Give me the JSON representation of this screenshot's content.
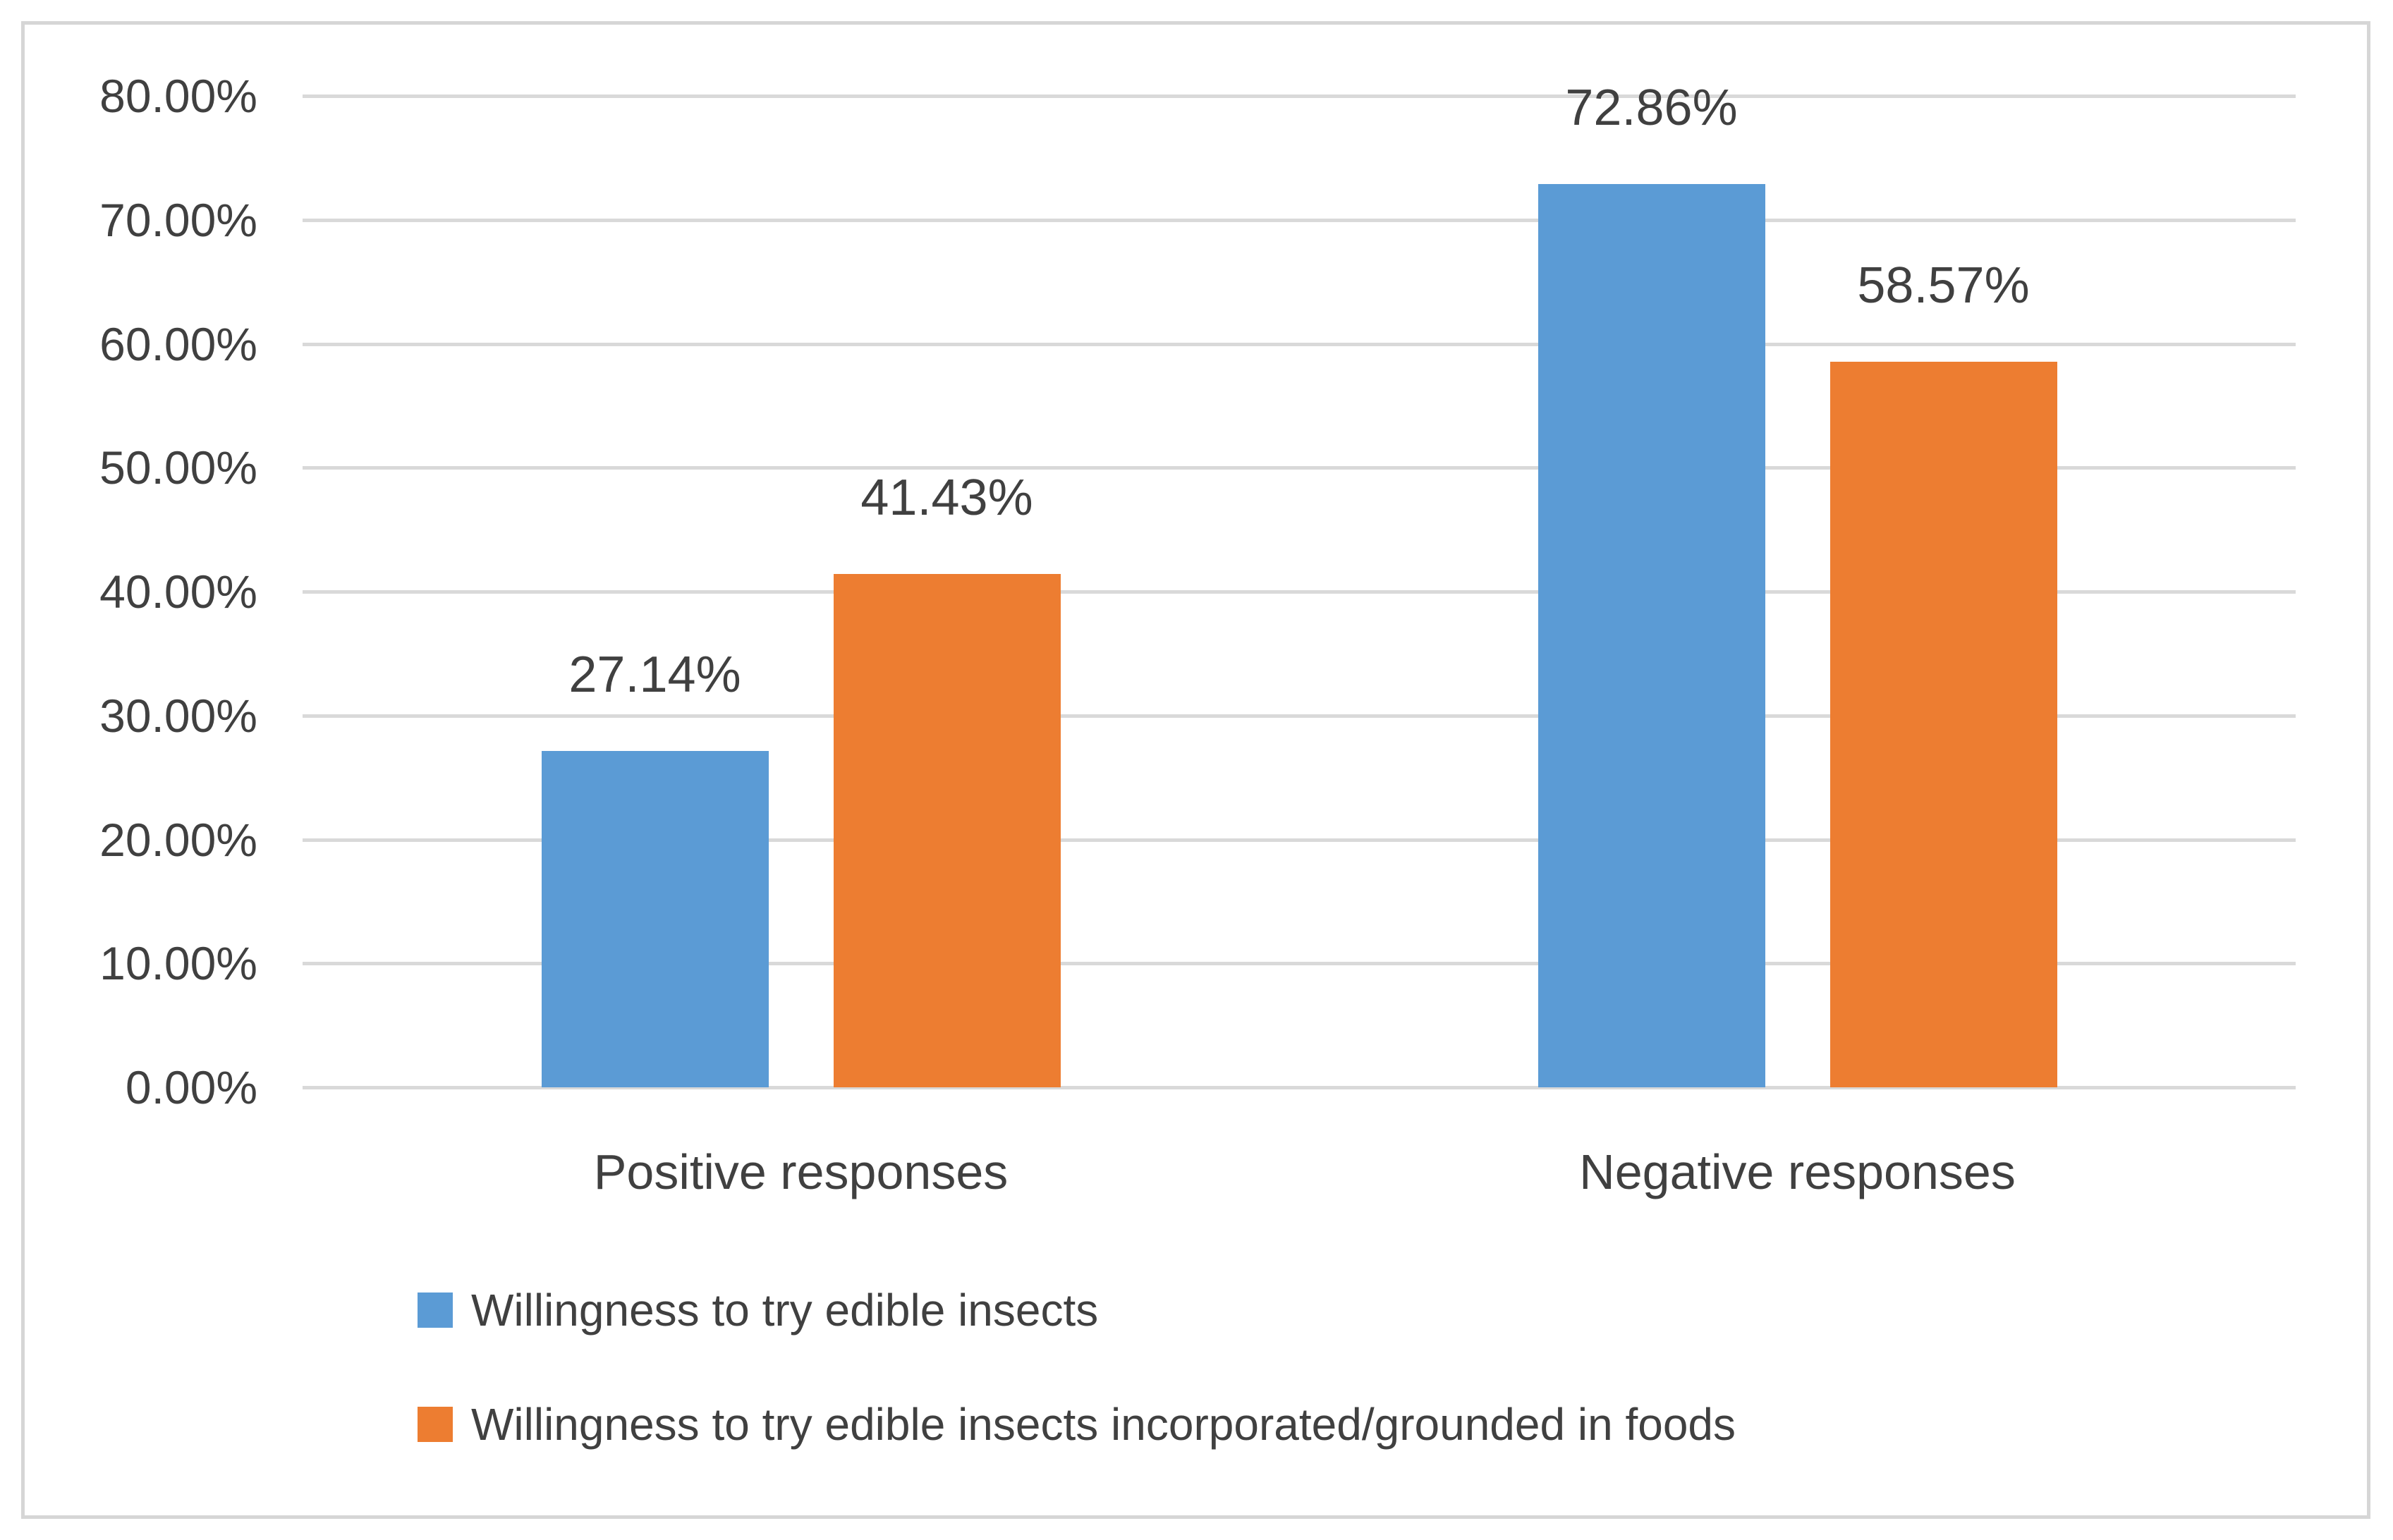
{
  "chart_data": {
    "type": "bar",
    "title": "",
    "categories": [
      "Positive responses",
      "Negative responses"
    ],
    "series": [
      {
        "name": "Willingness to try edible insects",
        "color": "#5B9BD5",
        "values": [
          27.14,
          72.86
        ],
        "labels": [
          "27.14%",
          "72.86%"
        ]
      },
      {
        "name": "Willingness to try edible insects incorporated/grounded in foods",
        "color": "#ED7D31",
        "values": [
          41.43,
          58.57
        ],
        "labels": [
          "41.43%",
          "58.57%"
        ]
      }
    ],
    "y_axis": {
      "min": 0,
      "max": 80,
      "step": 10,
      "tick_labels": [
        "0.00%",
        "10.00%",
        "20.00%",
        "30.00%",
        "40.00%",
        "50.00%",
        "60.00%",
        "70.00%",
        "80.00%"
      ],
      "grid": true
    },
    "legend_position": "bottom-left",
    "colors": {
      "gridline": "#d9d9d9",
      "frame_border": "#d6d6d6",
      "text": "#404040",
      "background": "#ffffff"
    }
  }
}
